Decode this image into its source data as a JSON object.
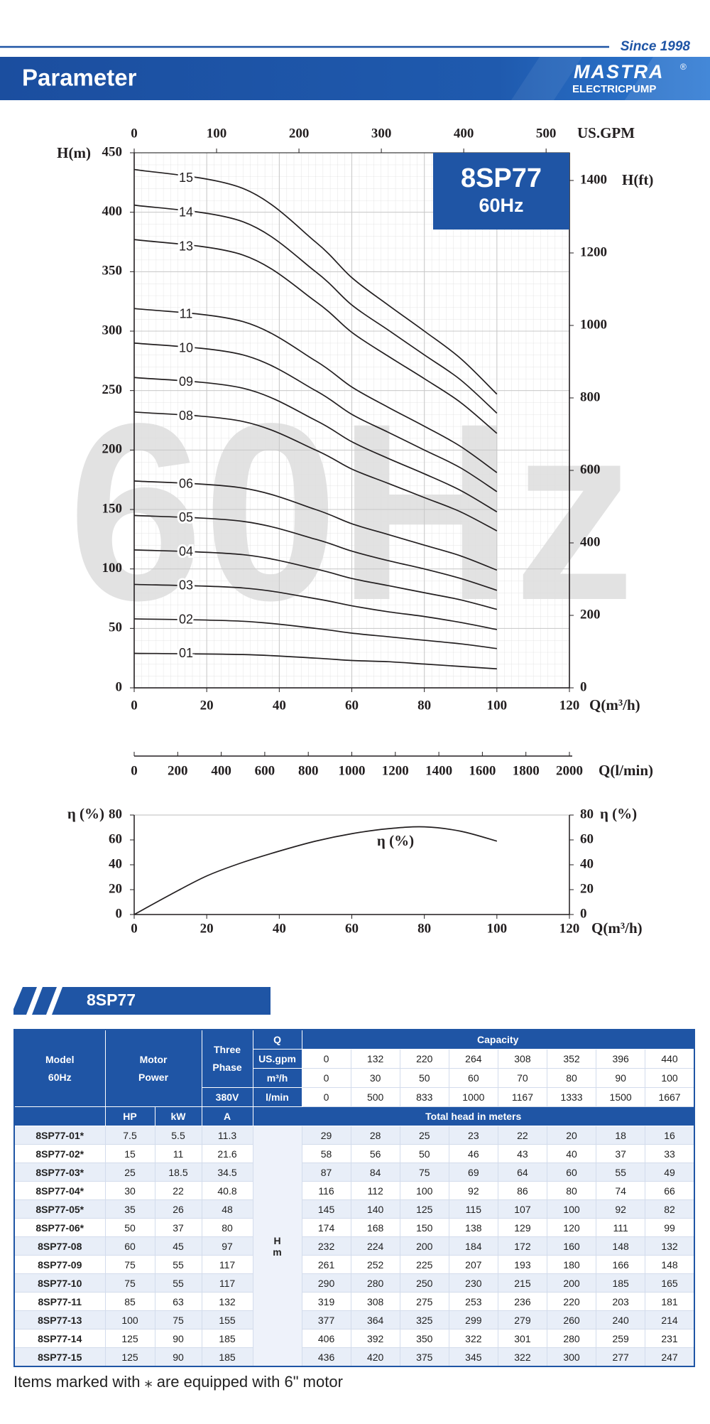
{
  "header": {
    "since": "Since 1998",
    "title": "Parameter",
    "logo": "MASTRA",
    "logo_mark": "®",
    "logo_sub": "ELECTRICPUMP"
  },
  "chart_data": [
    {
      "type": "line",
      "title": "8SP77",
      "subtitle": "60Hz",
      "watermark": "60Hz",
      "xlabel": "Q(m³/h)",
      "ylabel": "H(m)",
      "x2label": "US.GPM",
      "y2label": "H(ft)",
      "x3label": "Q(l/min)",
      "x": [
        0,
        30,
        50,
        60,
        70,
        80,
        90,
        100
      ],
      "xlim": [
        0,
        120
      ],
      "xticks": [
        0,
        20,
        40,
        60,
        80,
        100,
        120
      ],
      "ylim": [
        0,
        450
      ],
      "yticks": [
        0,
        50,
        100,
        150,
        200,
        250,
        300,
        350,
        400,
        450
      ],
      "x2lim": [
        0,
        528.3
      ],
      "x2ticks": [
        0,
        100,
        200,
        300,
        400,
        500
      ],
      "y2lim": [
        0,
        1476.4
      ],
      "y2ticks": [
        0,
        200,
        400,
        600,
        800,
        1000,
        1200,
        1400
      ],
      "x3lim": [
        0,
        2000
      ],
      "x3ticks": [
        0,
        200,
        400,
        600,
        800,
        1000,
        1200,
        1400,
        1600,
        1800,
        2000
      ],
      "grid": true,
      "series": [
        {
          "name": "01",
          "color": "#231f20",
          "values": [
            29,
            28,
            25,
            23,
            22,
            20,
            18,
            16
          ]
        },
        {
          "name": "02",
          "color": "#231f20",
          "values": [
            58,
            56,
            50,
            46,
            43,
            40,
            37,
            33
          ]
        },
        {
          "name": "03",
          "color": "#231f20",
          "values": [
            87,
            84,
            75,
            69,
            64,
            60,
            55,
            49
          ]
        },
        {
          "name": "04",
          "color": "#231f20",
          "values": [
            116,
            112,
            100,
            92,
            86,
            80,
            74,
            66
          ]
        },
        {
          "name": "05",
          "color": "#231f20",
          "values": [
            145,
            140,
            125,
            115,
            107,
            100,
            92,
            82
          ]
        },
        {
          "name": "06",
          "color": "#231f20",
          "values": [
            174,
            168,
            150,
            138,
            129,
            120,
            111,
            99
          ]
        },
        {
          "name": "08",
          "color": "#231f20",
          "values": [
            232,
            224,
            200,
            184,
            172,
            160,
            148,
            132
          ]
        },
        {
          "name": "09",
          "color": "#231f20",
          "values": [
            261,
            252,
            225,
            207,
            193,
            180,
            166,
            148
          ]
        },
        {
          "name": "10",
          "color": "#231f20",
          "values": [
            290,
            280,
            250,
            230,
            215,
            200,
            185,
            165
          ]
        },
        {
          "name": "11",
          "color": "#231f20",
          "values": [
            319,
            308,
            275,
            253,
            236,
            220,
            203,
            181
          ]
        },
        {
          "name": "13",
          "color": "#231f20",
          "values": [
            377,
            364,
            325,
            299,
            279,
            260,
            240,
            214
          ]
        },
        {
          "name": "14",
          "color": "#231f20",
          "values": [
            406,
            392,
            350,
            322,
            301,
            280,
            259,
            231
          ]
        },
        {
          "name": "15",
          "color": "#231f20",
          "values": [
            436,
            420,
            375,
            345,
            322,
            300,
            277,
            247
          ]
        }
      ]
    },
    {
      "type": "line",
      "xlabel": "Q(m³/h)",
      "ylabel": "η (%)",
      "y2label": "η (%)",
      "annotation": "η (%)",
      "x": [
        0,
        10,
        20,
        30,
        40,
        50,
        60,
        70,
        80,
        90,
        100
      ],
      "values": [
        0,
        16,
        31,
        42,
        51,
        59,
        65,
        69,
        70.5,
        67,
        59
      ],
      "color": "#231f20",
      "xlim": [
        0,
        120
      ],
      "xticks": [
        0,
        20,
        40,
        60,
        80,
        100,
        120
      ],
      "ylim": [
        0,
        80
      ],
      "yticks": [
        0,
        20,
        40,
        60,
        80
      ],
      "y2lim": [
        0,
        80
      ],
      "y2ticks": [
        0,
        20,
        40,
        60,
        80
      ],
      "grid": false
    }
  ],
  "table": {
    "title": "8SP77",
    "head": {
      "model": "Model",
      "model_hz": "60Hz",
      "motor": "Motor",
      "power": "Power",
      "three": "Three",
      "phase": "Phase",
      "voltage": "380V",
      "q": "Q",
      "capacity": "Capacity",
      "units": [
        "US.gpm",
        "m³/h",
        "l/min"
      ],
      "capacity_rows": [
        [
          0,
          132,
          220,
          264,
          308,
          352,
          396,
          440
        ],
        [
          0,
          30,
          50,
          60,
          70,
          80,
          90,
          100
        ],
        [
          0,
          500,
          833,
          1000,
          1167,
          1333,
          1500,
          1667
        ]
      ],
      "hp": "HP",
      "kw": "kW",
      "a": "A",
      "total_head": "Total head in meters",
      "h": "H",
      "m": "m"
    },
    "rows": [
      {
        "model": "8SP77-01*",
        "hp": 7.5,
        "kw": 5.5,
        "a": 11.3,
        "heads": [
          29,
          28,
          25,
          23,
          22,
          20,
          18,
          16
        ]
      },
      {
        "model": "8SP77-02*",
        "hp": 15,
        "kw": 11,
        "a": 21.6,
        "heads": [
          58,
          56,
          50,
          46,
          43,
          40,
          37,
          33
        ]
      },
      {
        "model": "8SP77-03*",
        "hp": 25,
        "kw": 18.5,
        "a": 34.5,
        "heads": [
          87,
          84,
          75,
          69,
          64,
          60,
          55,
          49
        ]
      },
      {
        "model": "8SP77-04*",
        "hp": 30,
        "kw": 22,
        "a": 40.8,
        "heads": [
          116,
          112,
          100,
          92,
          86,
          80,
          74,
          66
        ]
      },
      {
        "model": "8SP77-05*",
        "hp": 35,
        "kw": 26,
        "a": 48,
        "heads": [
          145,
          140,
          125,
          115,
          107,
          100,
          92,
          82
        ]
      },
      {
        "model": "8SP77-06*",
        "hp": 50,
        "kw": 37,
        "a": 80,
        "heads": [
          174,
          168,
          150,
          138,
          129,
          120,
          111,
          99
        ]
      },
      {
        "model": "8SP77-08",
        "hp": 60,
        "kw": 45,
        "a": 97,
        "heads": [
          232,
          224,
          200,
          184,
          172,
          160,
          148,
          132
        ]
      },
      {
        "model": "8SP77-09",
        "hp": 75,
        "kw": 55,
        "a": 117,
        "heads": [
          261,
          252,
          225,
          207,
          193,
          180,
          166,
          148
        ]
      },
      {
        "model": "8SP77-10",
        "hp": 75,
        "kw": 55,
        "a": 117,
        "heads": [
          290,
          280,
          250,
          230,
          215,
          200,
          185,
          165
        ]
      },
      {
        "model": "8SP77-11",
        "hp": 85,
        "kw": 63,
        "a": 132,
        "heads": [
          319,
          308,
          275,
          253,
          236,
          220,
          203,
          181
        ]
      },
      {
        "model": "8SP77-13",
        "hp": 100,
        "kw": 75,
        "a": 155,
        "heads": [
          377,
          364,
          325,
          299,
          279,
          260,
          240,
          214
        ]
      },
      {
        "model": "8SP77-14",
        "hp": 125,
        "kw": 90,
        "a": 185,
        "heads": [
          406,
          392,
          350,
          322,
          301,
          280,
          259,
          231
        ]
      },
      {
        "model": "8SP77-15",
        "hp": 125,
        "kw": 90,
        "a": 185,
        "heads": [
          436,
          420,
          375,
          345,
          322,
          300,
          277,
          247
        ]
      }
    ]
  },
  "footnote": "Items marked with ⁎ are equipped with 6\" motor"
}
